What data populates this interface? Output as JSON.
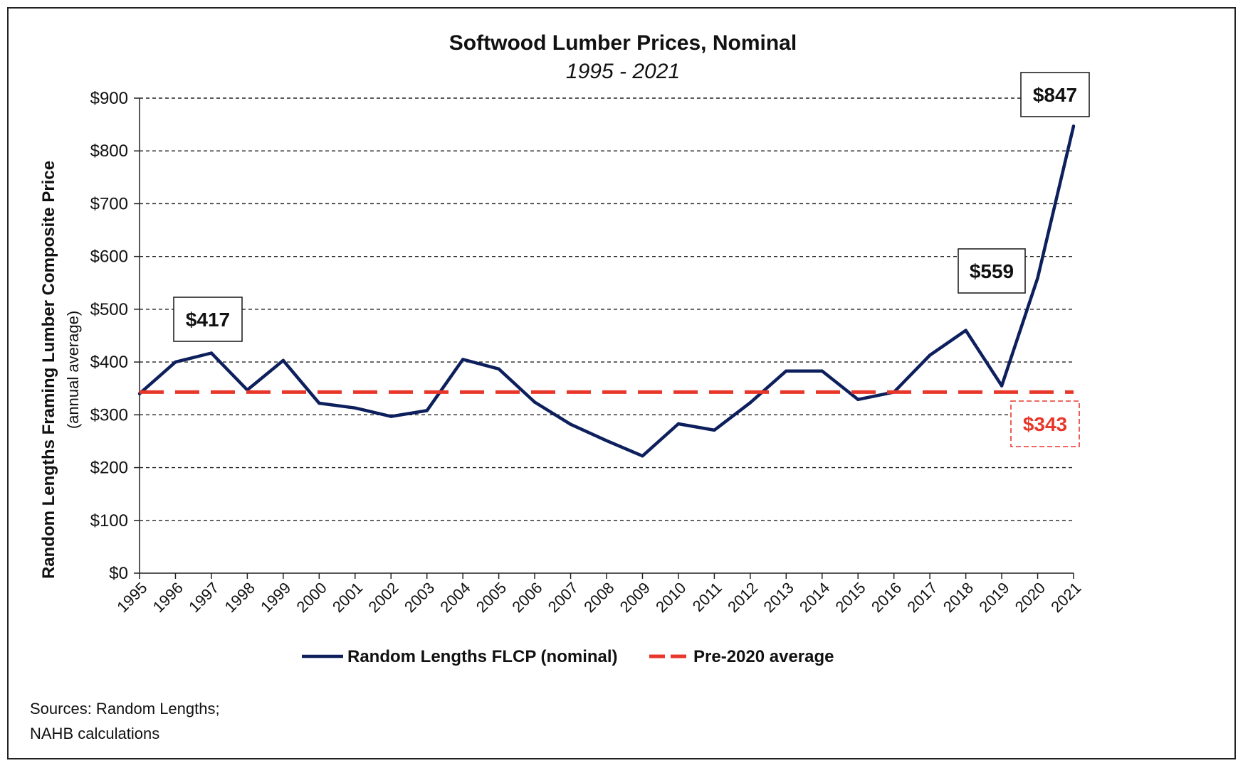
{
  "chart_data": {
    "type": "line",
    "title": "Softwood Lumber Prices, Nominal",
    "subtitle": "1995 - 2021",
    "ylabel": "Random Lengths Framing Lumber Composite Price",
    "ylabel_sub": "(annual average)",
    "ylim": [
      0,
      900
    ],
    "y_ticks": [
      0,
      100,
      200,
      300,
      400,
      500,
      600,
      700,
      800,
      900
    ],
    "y_tick_labels": [
      "$0",
      "$100",
      "$200",
      "$300",
      "$400",
      "$500",
      "$600",
      "$700",
      "$800",
      "$900"
    ],
    "grid": "horizontal dashed",
    "x": [
      "1995",
      "1996",
      "1997",
      "1998",
      "1999",
      "2000",
      "2001",
      "2002",
      "2003",
      "2004",
      "2005",
      "2006",
      "2007",
      "2008",
      "2009",
      "2010",
      "2011",
      "2012",
      "2013",
      "2014",
      "2015",
      "2016",
      "2017",
      "2018",
      "2019",
      "2020",
      "2021"
    ],
    "series": [
      {
        "name": "Random Lengths FLCP (nominal)",
        "color": "#0d1f5c",
        "style": "solid",
        "values": [
          340,
          400,
          417,
          347,
          403,
          322,
          313,
          297,
          308,
          405,
          387,
          324,
          282,
          251,
          222,
          283,
          271,
          323,
          383,
          383,
          329,
          343,
          413,
          460,
          355,
          559,
          847
        ]
      },
      {
        "name": "Pre-2020 average",
        "color": "#e8372a",
        "style": "dashed",
        "values": [
          343,
          343,
          343,
          343,
          343,
          343,
          343,
          343,
          343,
          343,
          343,
          343,
          343,
          343,
          343,
          343,
          343,
          343,
          343,
          343,
          343,
          343,
          343,
          343,
          343,
          343,
          343
        ]
      }
    ],
    "annotations": [
      {
        "label": "$417",
        "year": "1997",
        "value": 417
      },
      {
        "label": "$559",
        "year": "2020",
        "value": 559
      },
      {
        "label": "$847",
        "year": "2021",
        "value": 847
      },
      {
        "label": "$343",
        "year": "2021",
        "value": 343,
        "color": "#e8372a",
        "dashed_box": true
      }
    ],
    "legend_position": "bottom-center",
    "source": [
      "Sources: Random Lengths;",
      "NAHB calculations"
    ]
  }
}
